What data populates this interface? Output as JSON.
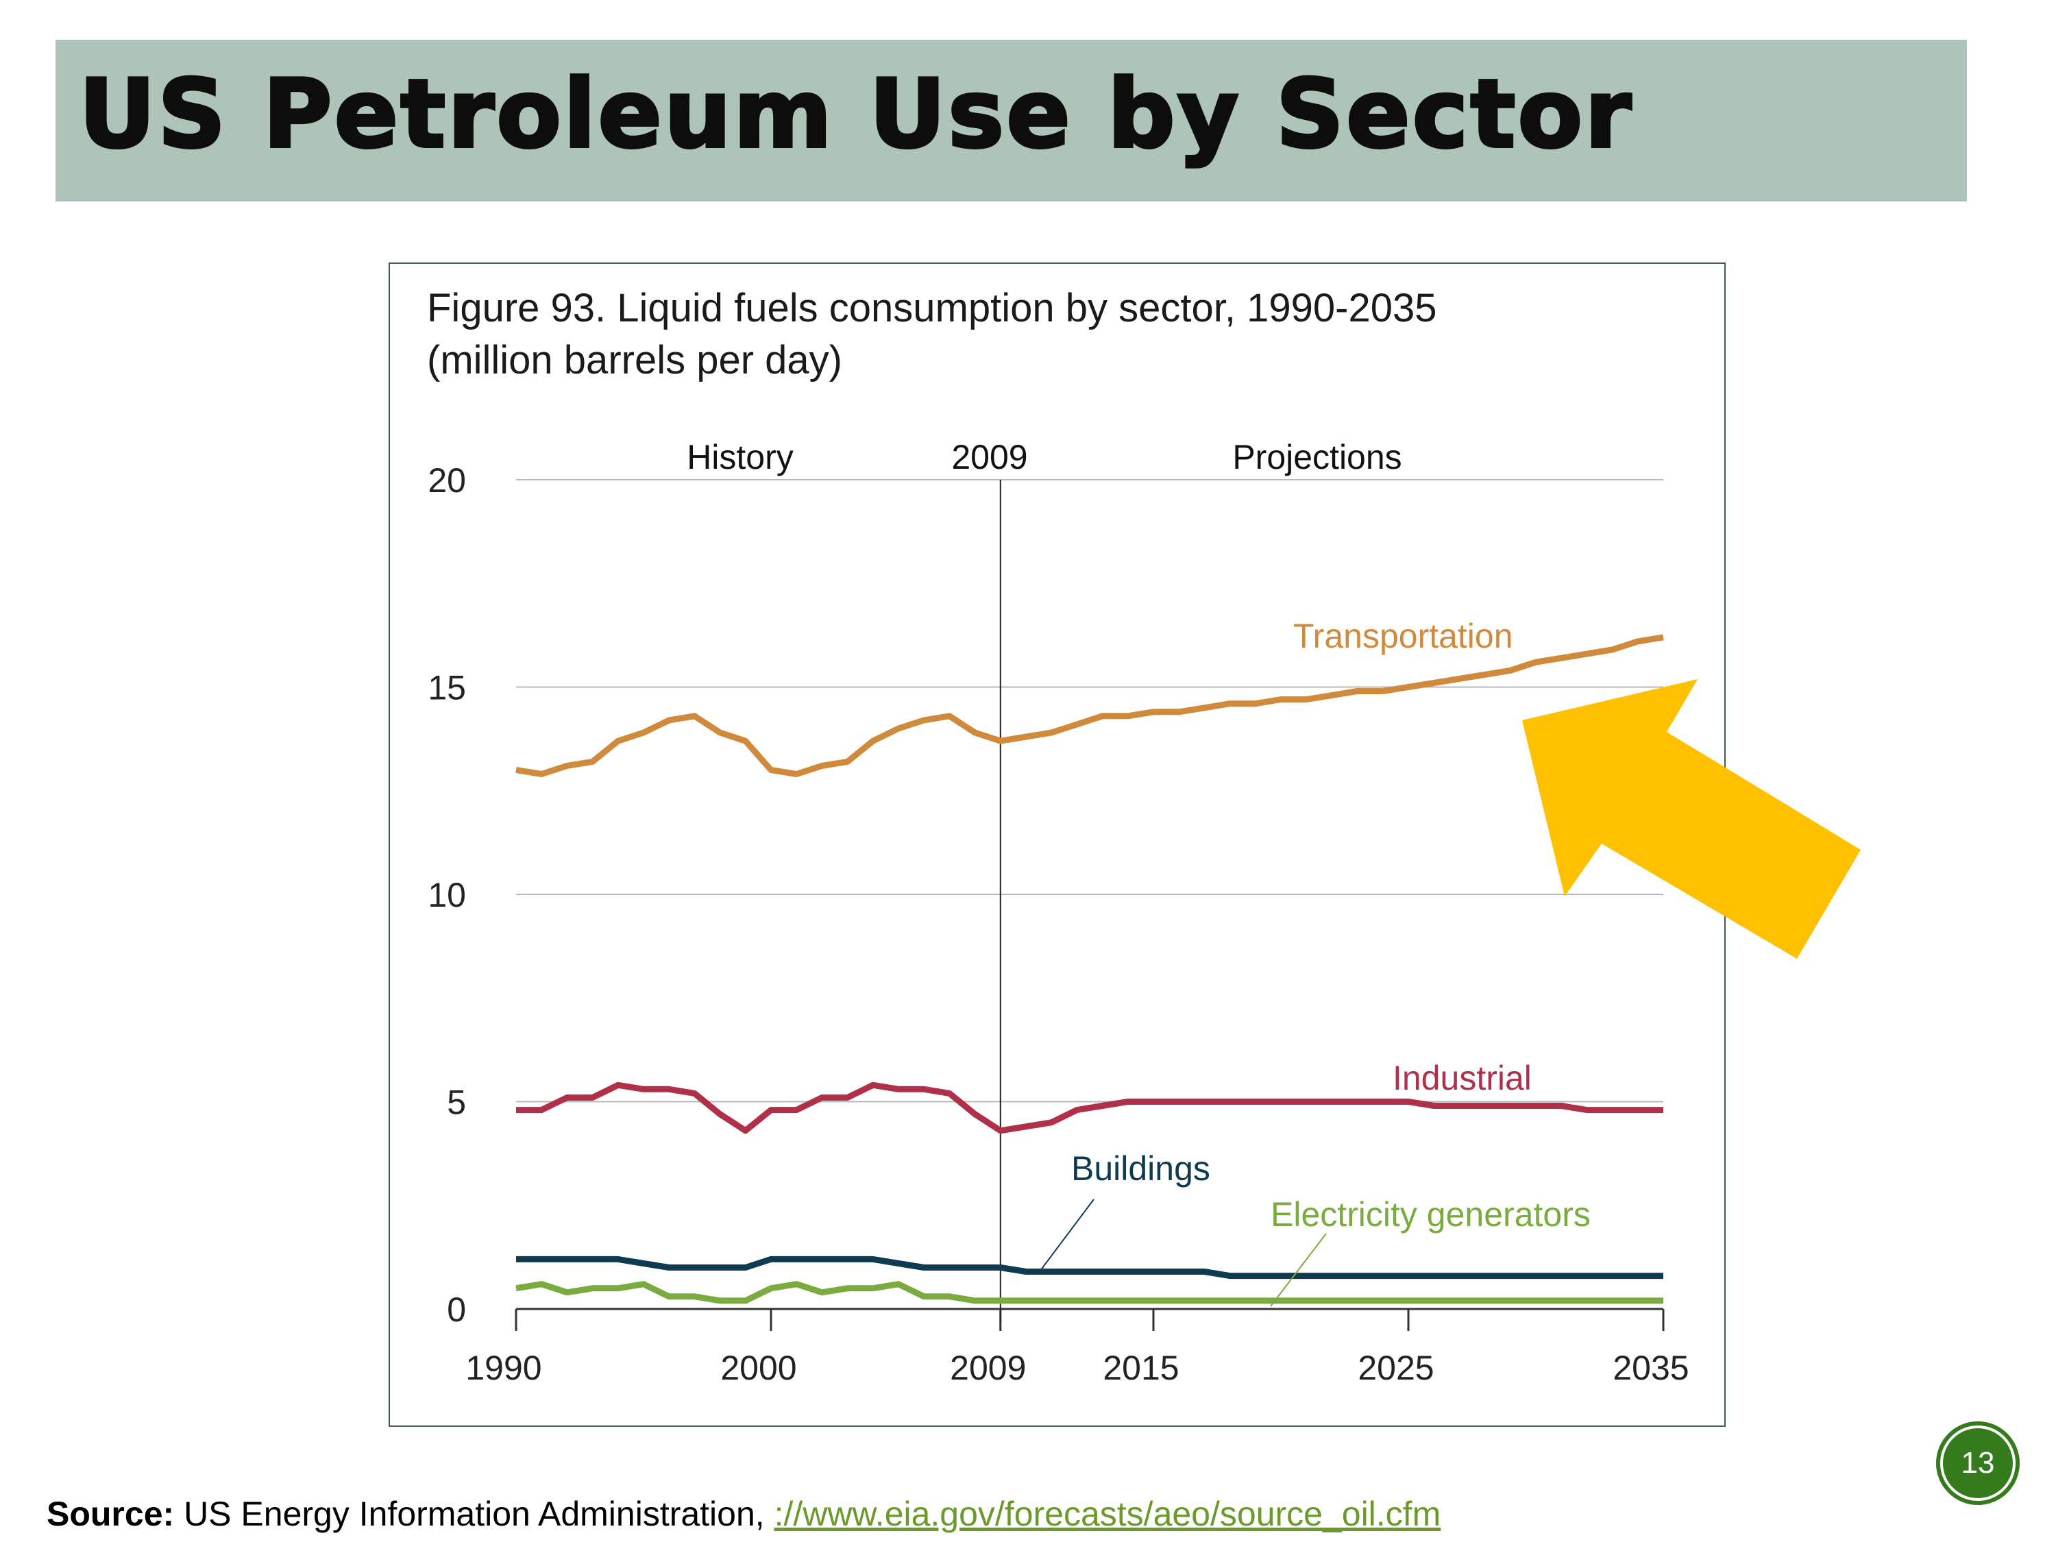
{
  "slide": {
    "title": "US Petroleum Use by Sector",
    "page_number": "13",
    "source_label": "Source:",
    "source_text": " US Energy Information Administration, ",
    "source_link": "://www.eia.gov/forecasts/aeo/source_oil.cfm",
    "arrow_color": "#FFC000"
  },
  "chart_data": {
    "type": "line",
    "title_line1": "Figure 93. Liquid fuels consumption by sector, 1990-2035",
    "title_line2": "(million barrels per day)",
    "xlabel": "",
    "ylabel": "",
    "xlim": [
      1990,
      2035
    ],
    "ylim": [
      0,
      20
    ],
    "yticks": [
      "0",
      "5",
      "10",
      "15",
      "20"
    ],
    "xticks": [
      "1990",
      "2000",
      "2009",
      "2015",
      "2025",
      "2035"
    ],
    "xtick_values": [
      1990,
      2000,
      2009,
      2015,
      2025,
      2035
    ],
    "ytick_values": [
      0,
      5,
      10,
      15,
      20
    ],
    "annotations": {
      "history": "History",
      "divider": "2009",
      "projections": "Projections"
    },
    "divider_year": 2009,
    "grid": true,
    "x": [
      1990,
      1991,
      1992,
      1993,
      1994,
      1995,
      1996,
      1997,
      1998,
      1999,
      2000,
      2001,
      2002,
      2003,
      2004,
      2005,
      2006,
      2007,
      2008,
      2009,
      2010,
      2011,
      2012,
      2013,
      2014,
      2015,
      2016,
      2017,
      2018,
      2019,
      2020,
      2021,
      2022,
      2023,
      2024,
      2025,
      2026,
      2027,
      2028,
      2029,
      2030,
      2031,
      2032,
      2033,
      2034,
      2035
    ],
    "series": [
      {
        "name": "Transportation",
        "color": "#d08a3c",
        "values": [
          13.0,
          12.9,
          13.1,
          13.2,
          13.7,
          13.9,
          14.2,
          14.3,
          13.9,
          13.7,
          13.0,
          12.9,
          13.1,
          13.2,
          13.7,
          14.0,
          14.2,
          14.3,
          13.9,
          13.7,
          13.8,
          13.9,
          14.1,
          14.3,
          14.3,
          14.4,
          14.4,
          14.5,
          14.6,
          14.6,
          14.7,
          14.7,
          14.8,
          14.9,
          14.9,
          15.0,
          15.1,
          15.2,
          15.3,
          15.4,
          15.6,
          15.7,
          15.8,
          15.9,
          16.1,
          16.2
        ]
      },
      {
        "name": "Industrial",
        "color": "#b0304a",
        "values": [
          4.8,
          4.8,
          5.1,
          5.1,
          5.4,
          5.3,
          5.3,
          5.2,
          4.7,
          4.3,
          4.8,
          4.8,
          5.1,
          5.1,
          5.4,
          5.3,
          5.3,
          5.2,
          4.7,
          4.3,
          4.4,
          4.5,
          4.8,
          4.9,
          5.0,
          5.0,
          5.0,
          5.0,
          5.0,
          5.0,
          5.0,
          5.0,
          5.0,
          5.0,
          5.0,
          5.0,
          4.9,
          4.9,
          4.9,
          4.9,
          4.9,
          4.9,
          4.8,
          4.8,
          4.8,
          4.8
        ]
      },
      {
        "name": "Buildings",
        "color": "#0e3a52",
        "values": [
          1.2,
          1.2,
          1.2,
          1.2,
          1.2,
          1.1,
          1.0,
          1.0,
          1.0,
          1.0,
          1.2,
          1.2,
          1.2,
          1.2,
          1.2,
          1.1,
          1.0,
          1.0,
          1.0,
          1.0,
          0.9,
          0.9,
          0.9,
          0.9,
          0.9,
          0.9,
          0.9,
          0.9,
          0.8,
          0.8,
          0.8,
          0.8,
          0.8,
          0.8,
          0.8,
          0.8,
          0.8,
          0.8,
          0.8,
          0.8,
          0.8,
          0.8,
          0.8,
          0.8,
          0.8,
          0.8
        ]
      },
      {
        "name": "Electricity generators",
        "color": "#7aab3f",
        "values": [
          0.5,
          0.6,
          0.4,
          0.5,
          0.5,
          0.6,
          0.3,
          0.3,
          0.2,
          0.2,
          0.5,
          0.6,
          0.4,
          0.5,
          0.5,
          0.6,
          0.3,
          0.3,
          0.2,
          0.2,
          0.2,
          0.2,
          0.2,
          0.2,
          0.2,
          0.2,
          0.2,
          0.2,
          0.2,
          0.2,
          0.2,
          0.2,
          0.2,
          0.2,
          0.2,
          0.2,
          0.2,
          0.2,
          0.2,
          0.2,
          0.2,
          0.2,
          0.2,
          0.2,
          0.2,
          0.2
        ]
      }
    ]
  }
}
